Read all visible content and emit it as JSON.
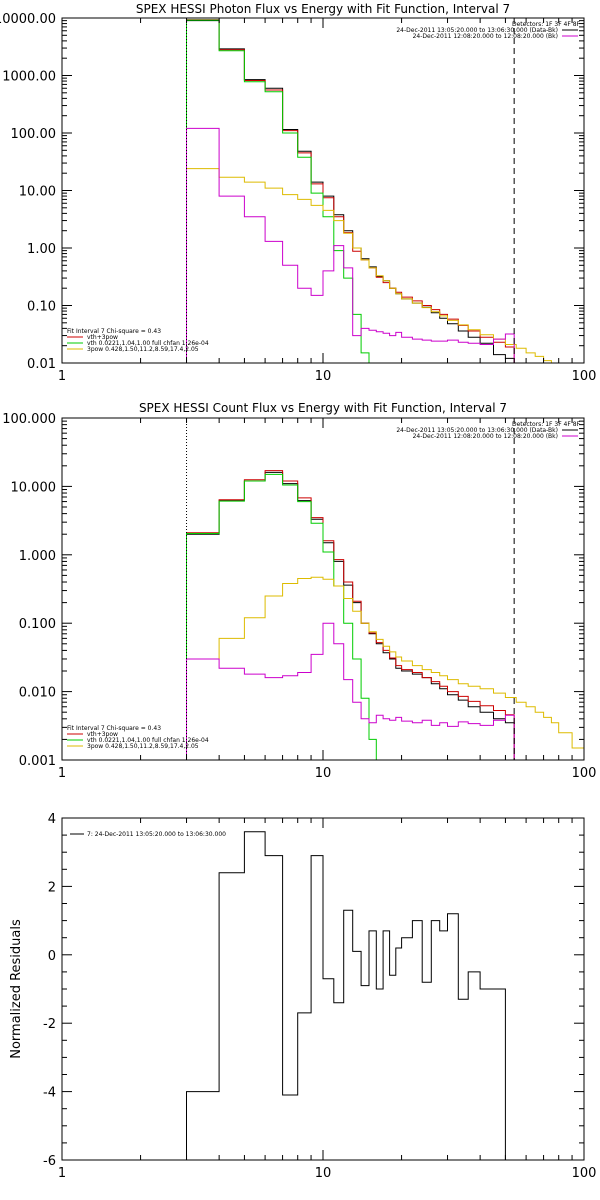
{
  "chart_data": [
    {
      "type": "line",
      "title": "SPEX HESSI Photon Flux vs Energy with Fit Function, Interval 7",
      "xlabel": "",
      "ylabel": "",
      "xscale": "log",
      "yscale": "log",
      "xlim": [
        1,
        100
      ],
      "ylim": [
        0.01,
        10000
      ],
      "xticks": [
        "1",
        "10",
        "100"
      ],
      "yticks": [
        "10000.00",
        "1000.00",
        "100.00",
        "10.00",
        "1.00",
        "0.10",
        "0.01"
      ],
      "vlines": [
        {
          "x": 3,
          "style": "dotted"
        },
        {
          "x": 54,
          "style": "dashed"
        }
      ],
      "legend_top": [
        {
          "label": "Detectors: 1F 3F 4F 8F",
          "color": "#000000"
        },
        {
          "label": "24-Dec-2011 13:05:20.000 to 13:06:30.000 (Data-Bk)",
          "color": "#000000"
        },
        {
          "label": "24-Dec-2011 12:08:20.000 to 12:08:20.000 (Bk)",
          "color": "#cc00cc"
        }
      ],
      "legend_bottom": [
        {
          "label": "Fit Interval 7   Chi-square = 0.43",
          "color": "#000000"
        },
        {
          "label": "vth+3pow",
          "color": "#cc0000"
        },
        {
          "label": "vth 0.0221,1.04,1.00  full chfan 1.26e-04",
          "color": "#00cc00"
        },
        {
          "label": "3pow 0.428,1.50,11.2,8.59,17.4,2.05",
          "color": "#ddbb00"
        }
      ],
      "series": [
        {
          "color": "#000000",
          "edges": [
            3,
            4,
            5,
            6,
            7,
            8,
            9,
            10,
            11,
            12,
            13,
            14,
            15,
            16,
            17,
            18,
            19,
            20,
            22,
            24,
            26,
            28,
            30,
            33,
            36,
            40,
            45,
            50,
            54
          ],
          "values": [
            9000,
            2900,
            850,
            600,
            115,
            48,
            14,
            8,
            3.8,
            2.0,
            1.0,
            0.65,
            0.47,
            0.32,
            0.27,
            0.2,
            0.16,
            0.13,
            0.11,
            0.093,
            0.075,
            0.06,
            0.048,
            0.036,
            0.028,
            0.022,
            0.014,
            0.012
          ]
        },
        {
          "color": "#cc0000",
          "edges": [
            3,
            4,
            5,
            6,
            7,
            8,
            9,
            10,
            11,
            12,
            13,
            14,
            15,
            16,
            17,
            18,
            19,
            20,
            22,
            24,
            26,
            28,
            30,
            33,
            36,
            40,
            45,
            50,
            54
          ],
          "values": [
            9300,
            2800,
            820,
            560,
            110,
            45,
            13,
            7.5,
            3.5,
            1.85,
            0.88,
            0.62,
            0.45,
            0.31,
            0.25,
            0.2,
            0.17,
            0.14,
            0.12,
            0.1,
            0.085,
            0.07,
            0.058,
            0.045,
            0.036,
            0.028,
            0.023,
            0.019
          ]
        },
        {
          "color": "#00cc00",
          "edges": [
            3,
            4,
            5,
            6,
            7,
            8,
            9,
            10,
            11,
            12,
            13,
            14,
            15
          ],
          "values": [
            9200,
            2700,
            780,
            520,
            100,
            38,
            9,
            3.5,
            0.9,
            0.3,
            0.07,
            0.015
          ]
        },
        {
          "color": "#ddbb00",
          "edges": [
            3,
            4,
            5,
            6,
            7,
            8,
            9,
            10,
            11,
            12,
            13,
            14,
            15,
            16,
            17,
            18,
            19,
            20,
            22,
            24,
            26,
            28,
            30,
            33,
            36,
            40,
            45,
            50,
            55,
            60,
            65,
            70,
            75,
            80
          ],
          "values": [
            24,
            17,
            14,
            11,
            8.5,
            7.0,
            5.5,
            4.5,
            3.0,
            1.8,
            1.0,
            0.62,
            0.45,
            0.33,
            0.27,
            0.2,
            0.16,
            0.13,
            0.11,
            0.092,
            0.078,
            0.066,
            0.055,
            0.046,
            0.038,
            0.031,
            0.026,
            0.021,
            0.018,
            0.015,
            0.013,
            0.011,
            0.01
          ]
        },
        {
          "color": "#cc00cc",
          "edges": [
            3,
            4,
            5,
            6,
            7,
            8,
            9,
            10,
            11,
            12,
            13,
            14,
            15,
            16,
            17,
            18,
            19,
            20,
            22,
            24,
            26,
            28,
            30,
            33,
            36,
            40,
            45,
            50,
            54
          ],
          "values": [
            120,
            8,
            3.5,
            1.3,
            0.5,
            0.2,
            0.15,
            0.4,
            1.1,
            0.45,
            0.03,
            0.04,
            0.037,
            0.035,
            0.033,
            0.03,
            0.034,
            0.028,
            0.026,
            0.025,
            0.024,
            0.024,
            0.025,
            0.023,
            0.022,
            0.021,
            0.026,
            0.032
          ]
        }
      ]
    },
    {
      "type": "line",
      "title": "SPEX HESSI Count Flux vs Energy with Fit Function, Interval 7",
      "xlabel": "",
      "ylabel": "",
      "xscale": "log",
      "yscale": "log",
      "xlim": [
        1,
        100
      ],
      "ylim": [
        0.001,
        100
      ],
      "xticks": [
        "1",
        "10",
        "100"
      ],
      "yticks": [
        "100.000",
        "10.000",
        "1.000",
        "0.100",
        "0.010",
        "0.001"
      ],
      "vlines": [
        {
          "x": 3,
          "style": "dotted"
        },
        {
          "x": 54,
          "style": "dashed"
        }
      ],
      "legend_top": [
        {
          "label": "Detectors: 1F 3F 4F 8F",
          "color": "#000000"
        },
        {
          "label": "24-Dec-2011 13:05:20.000 to 13:06:30.000 (Data-Bk)",
          "color": "#000000"
        },
        {
          "label": "24-Dec-2011 12:08:20.000 to 12:08:20.000 (Bk)",
          "color": "#cc00cc"
        }
      ],
      "legend_bottom": [
        {
          "label": "Fit Interval 7   Chi-square = 0.43",
          "color": "#000000"
        },
        {
          "label": "vth+3pow",
          "color": "#cc0000"
        },
        {
          "label": "vth 0.0221,1.04,1.00  full chfan 1.26e-04",
          "color": "#00cc00"
        },
        {
          "label": "3pow 0.428,1.50,11.2,8.59,17.4,2.05",
          "color": "#ddbb00"
        }
      ],
      "series": [
        {
          "color": "#000000",
          "edges": [
            3,
            4,
            5,
            6,
            7,
            8,
            9,
            10,
            11,
            12,
            13,
            14,
            15,
            16,
            17,
            18,
            19,
            20,
            22,
            24,
            26,
            28,
            30,
            33,
            36,
            40,
            45,
            50,
            54
          ],
          "values": [
            2.0,
            6.2,
            12,
            16,
            11,
            6.2,
            3.3,
            1.5,
            0.8,
            0.36,
            0.2,
            0.1,
            0.07,
            0.05,
            0.037,
            0.03,
            0.022,
            0.02,
            0.018,
            0.016,
            0.013,
            0.011,
            0.009,
            0.0075,
            0.006,
            0.005,
            0.004,
            0.0035
          ]
        },
        {
          "color": "#cc0000",
          "edges": [
            3,
            4,
            5,
            6,
            7,
            8,
            9,
            10,
            11,
            12,
            13,
            14,
            15,
            16,
            17,
            18,
            19,
            20,
            22,
            24,
            26,
            28,
            30,
            33,
            36,
            40,
            45,
            50,
            54
          ],
          "values": [
            2.1,
            6.4,
            12.5,
            17,
            12,
            6.8,
            3.5,
            1.6,
            0.85,
            0.4,
            0.21,
            0.1,
            0.072,
            0.052,
            0.04,
            0.031,
            0.024,
            0.021,
            0.019,
            0.016,
            0.014,
            0.012,
            0.01,
            0.0085,
            0.0072,
            0.0062,
            0.0053,
            0.0046
          ]
        },
        {
          "color": "#00cc00",
          "edges": [
            3,
            4,
            5,
            6,
            7,
            8,
            9,
            10,
            11,
            12,
            13,
            14,
            15,
            16
          ],
          "values": [
            2.05,
            6.1,
            12,
            15,
            10.5,
            6.0,
            2.9,
            1.1,
            0.35,
            0.1,
            0.03,
            0.008,
            0.002
          ]
        },
        {
          "color": "#ddbb00",
          "edges": [
            3,
            4,
            5,
            6,
            7,
            8,
            9,
            10,
            11,
            12,
            13,
            14,
            15,
            16,
            17,
            18,
            19,
            20,
            22,
            24,
            26,
            28,
            30,
            33,
            36,
            40,
            45,
            50,
            55,
            60,
            65,
            70,
            75,
            80,
            90,
            100
          ],
          "values": [
            0.03,
            0.06,
            0.12,
            0.25,
            0.38,
            0.45,
            0.47,
            0.44,
            0.35,
            0.23,
            0.15,
            0.1,
            0.075,
            0.058,
            0.046,
            0.038,
            0.032,
            0.028,
            0.024,
            0.021,
            0.019,
            0.017,
            0.015,
            0.013,
            0.012,
            0.011,
            0.0095,
            0.0082,
            0.007,
            0.006,
            0.005,
            0.0042,
            0.0035,
            0.0025,
            0.0015
          ]
        },
        {
          "color": "#cc00cc",
          "edges": [
            3,
            4,
            5,
            6,
            7,
            8,
            9,
            10,
            11,
            12,
            13,
            14,
            15,
            16,
            17,
            18,
            19,
            20,
            22,
            24,
            26,
            28,
            30,
            33,
            36,
            40,
            45,
            50,
            54
          ],
          "values": [
            0.03,
            0.022,
            0.018,
            0.016,
            0.017,
            0.019,
            0.035,
            0.1,
            0.05,
            0.015,
            0.007,
            0.004,
            0.0035,
            0.0045,
            0.004,
            0.0038,
            0.0042,
            0.0037,
            0.0035,
            0.0038,
            0.0032,
            0.0035,
            0.0031,
            0.0036,
            0.0034,
            0.0032,
            0.0038,
            0.0045
          ]
        }
      ]
    },
    {
      "type": "line",
      "title": "",
      "xlabel": "",
      "ylabel": "Normalized Residuals",
      "xscale": "log",
      "yscale": "linear",
      "xlim": [
        1,
        100
      ],
      "ylim": [
        -6,
        4
      ],
      "xticks": [
        "1",
        "10",
        "100"
      ],
      "yticks": [
        "4",
        "2",
        "0",
        "-2",
        "-4",
        "-6"
      ],
      "legend": [
        {
          "label": "7: 24-Dec-2011 13:05:20.000 to 13:06:30.000",
          "color": "#000000"
        }
      ],
      "series": [
        {
          "color": "#000000",
          "edges": [
            3,
            4,
            5,
            6,
            7,
            8,
            9,
            10,
            11,
            12,
            13,
            14,
            15,
            16,
            17,
            18,
            19,
            20,
            22,
            24,
            26,
            28,
            30,
            33,
            36,
            40,
            45,
            50,
            54,
            56
          ],
          "values": [
            -4.0,
            2.4,
            3.6,
            2.9,
            -4.1,
            -1.7,
            2.9,
            -0.7,
            -1.4,
            1.3,
            0.1,
            -0.9,
            0.7,
            -1.0,
            0.7,
            -0.6,
            0.2,
            0.5,
            1.0,
            -0.8,
            1.0,
            0.7,
            1.2,
            -1.3,
            -0.5,
            -1.0,
            -1.0,
            -6.0,
            -6.0
          ]
        }
      ]
    }
  ]
}
